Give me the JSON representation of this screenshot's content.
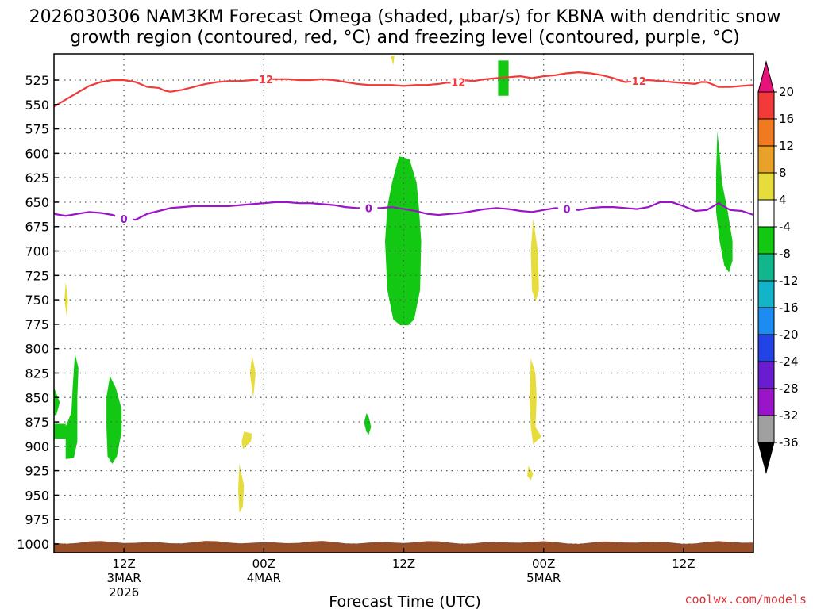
{
  "chart_data": {
    "type": "heatmap",
    "title_line1": "2026030306 NAM3KM Forecast Omega (shaded, μbar/s) for KBNA with dendritic snow",
    "title_line2": "growth region (contoured, red, °C) and freezing level (contoured, purple, °C)",
    "xlabel": "Forecast Time (UTC)",
    "credit": "coolwx.com/models",
    "x_units": "forecast hour from 2026030306",
    "xlim": [
      0,
      60
    ],
    "ylim_hPa": [
      500,
      1020
    ],
    "y_ticks": [
      525,
      550,
      575,
      600,
      625,
      650,
      675,
      700,
      725,
      750,
      775,
      800,
      825,
      850,
      875,
      900,
      925,
      950,
      975,
      1000
    ],
    "x_ticks": [
      {
        "hour": 6,
        "lines": [
          "12Z",
          "3MAR",
          "2026"
        ]
      },
      {
        "hour": 18,
        "lines": [
          "00Z",
          "4MAR"
        ]
      },
      {
        "hour": 30,
        "lines": [
          "12Z"
        ]
      },
      {
        "hour": 42,
        "lines": [
          "00Z",
          "5MAR"
        ]
      },
      {
        "hour": 54,
        "lines": [
          "12Z"
        ]
      }
    ],
    "grid": true,
    "colorbar": {
      "bins": [
        {
          "low": 20,
          "high": null,
          "color": "#e8137a"
        },
        {
          "low": 16,
          "high": 20,
          "color": "#f23a3a"
        },
        {
          "low": 12,
          "high": 16,
          "color": "#f07a1f"
        },
        {
          "low": 8,
          "high": 12,
          "color": "#e8a22a"
        },
        {
          "low": 4,
          "high": 8,
          "color": "#e6dd3c"
        },
        {
          "low": -4,
          "high": 4,
          "color": "#ffffff"
        },
        {
          "low": -8,
          "high": -4,
          "color": "#12c812"
        },
        {
          "low": -12,
          "high": -8,
          "color": "#12b68c"
        },
        {
          "low": -16,
          "high": -12,
          "color": "#14b4c8"
        },
        {
          "low": -20,
          "high": -16,
          "color": "#1c8cf0"
        },
        {
          "low": -24,
          "high": -20,
          "color": "#2244e6"
        },
        {
          "low": -28,
          "high": -24,
          "color": "#6a1cd0"
        },
        {
          "low": -32,
          "high": -28,
          "color": "#9a14c8"
        },
        {
          "low": -36,
          "high": -32,
          "color": "#a0a0a0"
        },
        {
          "low": null,
          "high": -36,
          "color": "#000000"
        }
      ],
      "tick_labels": [
        "20",
        "16",
        "12",
        "8",
        "4",
        "-4",
        "-8",
        "-12",
        "-16",
        "-20",
        "-24",
        "-28",
        "-32",
        "-36"
      ]
    },
    "contour_dgz_minus12C": {
      "label": "-12",
      "color": "#f23a3a",
      "points": [
        [
          0,
          552
        ],
        [
          1,
          545
        ],
        [
          2,
          538
        ],
        [
          3,
          531
        ],
        [
          4,
          527
        ],
        [
          5,
          525
        ],
        [
          6,
          525
        ],
        [
          7,
          527
        ],
        [
          8,
          532
        ],
        [
          9,
          533
        ],
        [
          9.5,
          536
        ],
        [
          10,
          537
        ],
        [
          11,
          535
        ],
        [
          12,
          532
        ],
        [
          13,
          529
        ],
        [
          14,
          527
        ],
        [
          15,
          526
        ],
        [
          16,
          526
        ],
        [
          17,
          525
        ],
        [
          18,
          524
        ],
        [
          19,
          524
        ],
        [
          20,
          524
        ],
        [
          21,
          525
        ],
        [
          22,
          525
        ],
        [
          23,
          524
        ],
        [
          24,
          525
        ],
        [
          25,
          527
        ],
        [
          26,
          529
        ],
        [
          27,
          530
        ],
        [
          28,
          530
        ],
        [
          29,
          530
        ],
        [
          30,
          531
        ],
        [
          31,
          530
        ],
        [
          32,
          530
        ],
        [
          33,
          529
        ],
        [
          34,
          527
        ],
        [
          35,
          525
        ],
        [
          36,
          526
        ],
        [
          37,
          524
        ],
        [
          38,
          523
        ],
        [
          39,
          522
        ],
        [
          40,
          521
        ],
        [
          41,
          523
        ],
        [
          42,
          521
        ],
        [
          43,
          520
        ],
        [
          44,
          518
        ],
        [
          45,
          517
        ],
        [
          46,
          518
        ],
        [
          47,
          520
        ],
        [
          48,
          523
        ],
        [
          49,
          527
        ],
        [
          50,
          526
        ],
        [
          51,
          525
        ],
        [
          52,
          526
        ],
        [
          53,
          527
        ],
        [
          54,
          528
        ],
        [
          55,
          529
        ],
        [
          55.5,
          527
        ],
        [
          56,
          527
        ],
        [
          57,
          532
        ],
        [
          58,
          532
        ],
        [
          59,
          531
        ],
        [
          60,
          530
        ]
      ],
      "label_hours": [
        18,
        34.5,
        50
      ]
    },
    "contour_freezing_0C": {
      "label": "0",
      "color": "#9b14c8",
      "points": [
        [
          0,
          662
        ],
        [
          1,
          664
        ],
        [
          2,
          662
        ],
        [
          3,
          660
        ],
        [
          4,
          661
        ],
        [
          5,
          663
        ],
        [
          6,
          667
        ],
        [
          7,
          668
        ],
        [
          8,
          662
        ],
        [
          9,
          659
        ],
        [
          10,
          656
        ],
        [
          11,
          655
        ],
        [
          12,
          654
        ],
        [
          13,
          654
        ],
        [
          14,
          654
        ],
        [
          15,
          654
        ],
        [
          16,
          653
        ],
        [
          17,
          652
        ],
        [
          18,
          651
        ],
        [
          19,
          650
        ],
        [
          20,
          650
        ],
        [
          21,
          651
        ],
        [
          22,
          651
        ],
        [
          23,
          652
        ],
        [
          24,
          653
        ],
        [
          25,
          655
        ],
        [
          26,
          656
        ],
        [
          27,
          656
        ],
        [
          28,
          656
        ],
        [
          29,
          655
        ],
        [
          30,
          657
        ],
        [
          31,
          659
        ],
        [
          32,
          662
        ],
        [
          33,
          663
        ],
        [
          34,
          662
        ],
        [
          35,
          661
        ],
        [
          36,
          659
        ],
        [
          37,
          657
        ],
        [
          38,
          656
        ],
        [
          39,
          657
        ],
        [
          40,
          659
        ],
        [
          41,
          660
        ],
        [
          42,
          658
        ],
        [
          43,
          656
        ],
        [
          44,
          657
        ],
        [
          45,
          658
        ],
        [
          46,
          656
        ],
        [
          47,
          655
        ],
        [
          48,
          655
        ],
        [
          49,
          656
        ],
        [
          50,
          657
        ],
        [
          51,
          655
        ],
        [
          52,
          650
        ],
        [
          53,
          650
        ],
        [
          54,
          654
        ],
        [
          55,
          659
        ],
        [
          56,
          658
        ],
        [
          57,
          651
        ],
        [
          58,
          658
        ],
        [
          59,
          659
        ],
        [
          60,
          663
        ]
      ],
      "label_hours": [
        6,
        27,
        44
      ]
    },
    "omega_regions": [
      {
        "color": "#12c812",
        "value_bin": "-8 to -4",
        "points": [
          [
            38.1,
            505
          ],
          [
            39.0,
            505
          ],
          [
            39.0,
            541
          ],
          [
            38.1,
            541
          ]
        ]
      },
      {
        "color": "#12c812",
        "value_bin": "-8 to -4",
        "points": [
          [
            29.6,
            603
          ],
          [
            30.5,
            606
          ],
          [
            31.1,
            630
          ],
          [
            31.3,
            655
          ],
          [
            31.5,
            690
          ],
          [
            31.4,
            740
          ],
          [
            30.9,
            770
          ],
          [
            30.4,
            776
          ],
          [
            29.7,
            776
          ],
          [
            29.1,
            770
          ],
          [
            28.6,
            740
          ],
          [
            28.4,
            690
          ],
          [
            28.6,
            655
          ],
          [
            29.0,
            630
          ]
        ]
      },
      {
        "color": "#12c812",
        "value_bin": "-8 to -4",
        "points": [
          [
            56.9,
            578
          ],
          [
            57.1,
            600
          ],
          [
            57.3,
            630
          ],
          [
            57.8,
            660
          ],
          [
            58.2,
            690
          ],
          [
            58.2,
            710
          ],
          [
            57.9,
            722
          ],
          [
            57.5,
            715
          ],
          [
            57.1,
            690
          ],
          [
            56.8,
            660
          ],
          [
            56.8,
            620
          ]
        ]
      },
      {
        "color": "#12c812",
        "value_bin": "-8 to -4",
        "points": [
          [
            1.8,
            805
          ],
          [
            2.1,
            820
          ],
          [
            2.0,
            850
          ],
          [
            2.0,
            895
          ],
          [
            1.7,
            912
          ],
          [
            1.0,
            913
          ],
          [
            1.0,
            880
          ],
          [
            1.5,
            865
          ],
          [
            1.6,
            840
          ]
        ]
      },
      {
        "color": "#12c812",
        "value_bin": "-8 to -4",
        "points": [
          [
            0,
            877
          ],
          [
            1.0,
            877
          ],
          [
            1.1,
            892
          ],
          [
            0,
            892
          ]
        ]
      },
      {
        "color": "#12c812",
        "value_bin": "-8 to -4",
        "points": [
          [
            0,
            840
          ],
          [
            0.5,
            855
          ],
          [
            0.2,
            868
          ],
          [
            0,
            868
          ]
        ]
      },
      {
        "color": "#12c812",
        "value_bin": "-8 to -4",
        "points": [
          [
            4.8,
            828
          ],
          [
            5.3,
            840
          ],
          [
            5.8,
            862
          ],
          [
            5.8,
            885
          ],
          [
            5.4,
            910
          ],
          [
            5.0,
            918
          ],
          [
            4.6,
            910
          ],
          [
            4.5,
            880
          ],
          [
            4.5,
            850
          ]
        ]
      },
      {
        "color": "#12c812",
        "value_bin": "-8 to -4",
        "points": [
          [
            26.8,
            866
          ],
          [
            27.0,
            870
          ],
          [
            27.2,
            880
          ],
          [
            27.0,
            888
          ],
          [
            26.8,
            885
          ],
          [
            26.6,
            876
          ]
        ]
      },
      {
        "color": "#e6dd3c",
        "value_bin": "4 to 8",
        "points": [
          [
            28.9,
            500
          ],
          [
            29.2,
            500
          ],
          [
            29.1,
            510
          ]
        ]
      },
      {
        "color": "#e6dd3c",
        "value_bin": "4 to 8",
        "points": [
          [
            1.0,
            732
          ],
          [
            1.2,
            750
          ],
          [
            1.1,
            768
          ],
          [
            0.9,
            750
          ]
        ]
      },
      {
        "color": "#e6dd3c",
        "value_bin": "4 to 8",
        "points": [
          [
            17.0,
            807
          ],
          [
            17.3,
            825
          ],
          [
            17.1,
            850
          ],
          [
            16.8,
            825
          ]
        ]
      },
      {
        "color": "#e6dd3c",
        "value_bin": "4 to 8",
        "points": [
          [
            16.3,
            885
          ],
          [
            17.0,
            887
          ],
          [
            16.9,
            895
          ],
          [
            16.2,
            903
          ],
          [
            16.1,
            895
          ]
        ]
      },
      {
        "color": "#e6dd3c",
        "value_bin": "4 to 8",
        "points": [
          [
            15.9,
            918
          ],
          [
            16.3,
            940
          ],
          [
            16.2,
            962
          ],
          [
            15.9,
            968
          ],
          [
            15.8,
            945
          ]
        ]
      },
      {
        "color": "#e6dd3c",
        "value_bin": "4 to 8",
        "points": [
          [
            41.1,
            667
          ],
          [
            41.5,
            700
          ],
          [
            41.6,
            740
          ],
          [
            41.3,
            752
          ],
          [
            41.0,
            740
          ],
          [
            40.9,
            700
          ]
        ]
      },
      {
        "color": "#e6dd3c",
        "value_bin": "4 to 8",
        "points": [
          [
            40.9,
            810
          ],
          [
            41.3,
            825
          ],
          [
            41.4,
            850
          ],
          [
            41.3,
            880
          ],
          [
            41.8,
            890
          ],
          [
            41.1,
            898
          ],
          [
            40.9,
            880
          ],
          [
            40.8,
            850
          ]
        ]
      },
      {
        "color": "#e6dd3c",
        "value_bin": "4 to 8",
        "points": [
          [
            40.7,
            920
          ],
          [
            41.1,
            928
          ],
          [
            40.9,
            935
          ],
          [
            40.6,
            930
          ]
        ]
      }
    ],
    "terrain_pressure_hPa": 1000
  }
}
